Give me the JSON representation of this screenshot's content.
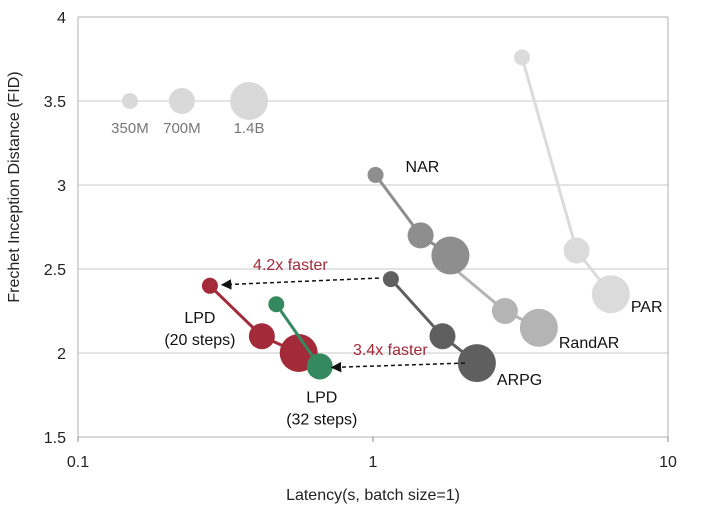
{
  "colors": {
    "lpd20": "#a32a39",
    "lpd32": "#34895f",
    "arpg": "#5f5f5f",
    "nar": "#8e8e8e",
    "randar": "#b4b4b4",
    "par": "#dbdbdb",
    "size_legend": "#d9d9d9",
    "annotation": "#a32a39",
    "grid": "#c8c8c8"
  },
  "chart_data": {
    "type": "scatter",
    "title": "",
    "xlabel": "Latency(s, batch size=1)",
    "ylabel": "Frechet Inception Distance (FID)",
    "xscale": "log",
    "xlim": [
      0.1,
      10
    ],
    "ylim": [
      1.5,
      4
    ],
    "xticks": [
      0.1,
      1,
      10
    ],
    "xtick_labels": [
      "0.1",
      "1",
      "10"
    ],
    "yticks": [
      1.5,
      2,
      2.5,
      3,
      3.5,
      4
    ],
    "ytick_labels": [
      "1.5",
      "2",
      "2.5",
      "3",
      "3.5",
      "4"
    ],
    "grid": "horizontal",
    "size_legend": [
      {
        "label": "350M",
        "x": 0.15,
        "y": 3.5,
        "size": "small"
      },
      {
        "label": "700M",
        "x": 0.225,
        "y": 3.5,
        "size": "medium"
      },
      {
        "label": "1.4B",
        "x": 0.38,
        "y": 3.5,
        "size": "large"
      }
    ],
    "series": [
      {
        "name": "PAR",
        "label": "PAR",
        "color_key": "par",
        "points": [
          {
            "x": 3.2,
            "y": 3.76,
            "size": "small"
          },
          {
            "x": 4.9,
            "y": 2.61,
            "size": "medium"
          },
          {
            "x": 6.4,
            "y": 2.35,
            "size": "large"
          }
        ]
      },
      {
        "name": "RandAR",
        "label": "RandAR",
        "color_key": "randar",
        "points": [
          {
            "x": 1.75,
            "y": 2.55,
            "size": "small"
          },
          {
            "x": 2.8,
            "y": 2.25,
            "size": "medium"
          },
          {
            "x": 3.65,
            "y": 2.15,
            "size": "large"
          }
        ]
      },
      {
        "name": "NAR",
        "label": "NAR",
        "color_key": "nar",
        "points": [
          {
            "x": 1.02,
            "y": 3.06,
            "size": "small"
          },
          {
            "x": 1.45,
            "y": 2.7,
            "size": "medium"
          },
          {
            "x": 1.83,
            "y": 2.58,
            "size": "large"
          }
        ]
      },
      {
        "name": "ARPG",
        "label": "ARPG",
        "color_key": "arpg",
        "points": [
          {
            "x": 1.15,
            "y": 2.44,
            "size": "small"
          },
          {
            "x": 1.72,
            "y": 2.1,
            "size": "medium"
          },
          {
            "x": 2.25,
            "y": 1.94,
            "size": "large"
          }
        ]
      },
      {
        "name": "LPD (20 steps)",
        "label": [
          "LPD",
          "(20 steps)"
        ],
        "color_key": "lpd20",
        "points": [
          {
            "x": 0.28,
            "y": 2.4,
            "size": "small"
          },
          {
            "x": 0.42,
            "y": 2.1,
            "size": "medium"
          },
          {
            "x": 0.56,
            "y": 2.0,
            "size": "large"
          }
        ]
      },
      {
        "name": "LPD (32 steps)",
        "label": [
          "LPD",
          "(32 steps)"
        ],
        "color_key": "lpd32",
        "points": [
          {
            "x": 0.47,
            "y": 2.29,
            "size": "small"
          },
          {
            "x": 0.66,
            "y": 1.92,
            "size": "medium"
          }
        ]
      }
    ],
    "annotations": [
      {
        "text": "4.2x faster",
        "from": {
          "x": 1.15,
          "y": 2.44
        },
        "to": {
          "x": 0.28,
          "y": 2.4
        }
      },
      {
        "text": "3.4x faster",
        "from": {
          "x": 2.25,
          "y": 1.94
        },
        "to": {
          "x": 0.66,
          "y": 1.92
        }
      }
    ]
  }
}
